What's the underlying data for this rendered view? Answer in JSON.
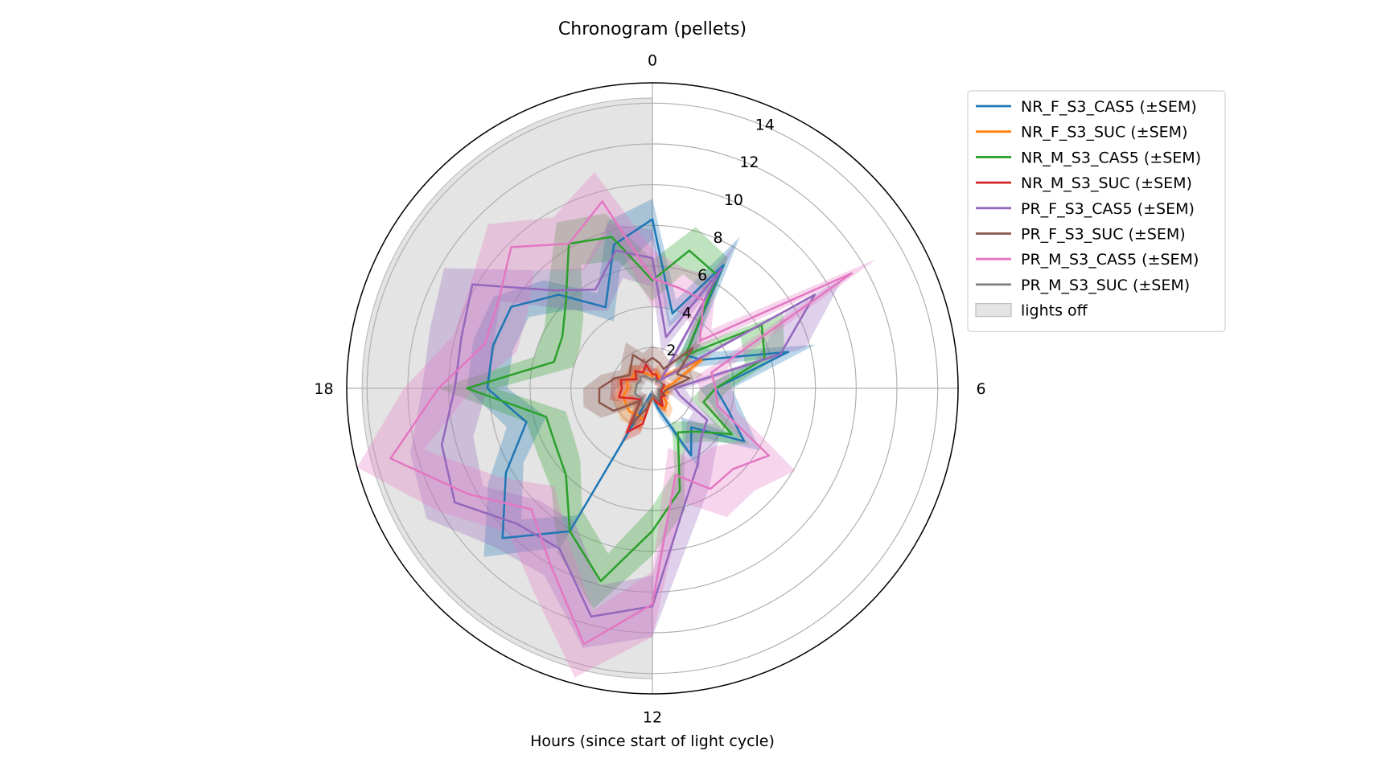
{
  "chart_data": {
    "type": "polar-line",
    "title": "Chronogram (pellets)",
    "xlabel": "Hours (since start of light cycle)",
    "angle_tick_labels": [
      "0",
      "6",
      "12",
      "18"
    ],
    "radial_tick_labels": [
      "2",
      "4",
      "6",
      "8",
      "10",
      "12",
      "14"
    ],
    "rlim": [
      0,
      15
    ],
    "hours": [
      0,
      1,
      2,
      3,
      4,
      5,
      6,
      7,
      8,
      9,
      10,
      11,
      12,
      13,
      14,
      15,
      16,
      17,
      18,
      19,
      20,
      21,
      22,
      23
    ],
    "lights_off": {
      "label": "lights off",
      "start_hour": 12,
      "end_hour": 24,
      "color": "#e4e4e4"
    },
    "grid": true,
    "legend_position": "upper-right, outside",
    "series": [
      {
        "name": "NR_F_S3_CAS5 (±SEM)",
        "color": "#1f77b4",
        "values": [
          8.3,
          3.8,
          7.0,
          2.3,
          2.8,
          6.9,
          3.1,
          3.8,
          5.2,
          2.7,
          3.8,
          1.0,
          0.4,
          0.3,
          8.1,
          10.4,
          8.3,
          6.4,
          8.1,
          8.1,
          8.0,
          6.5,
          4.6,
          7.3
        ],
        "sem": [
          1.0,
          0.7,
          1.6,
          0.8,
          0.8,
          1.4,
          0.8,
          0.8,
          0.9,
          0.7,
          0.8,
          0.5,
          0.3,
          0.3,
          0.9,
          1.3,
          1.0,
          1.0,
          1.0,
          1.0,
          1.0,
          1.0,
          0.8,
          1.2
        ],
        "_comment": "cells: NR_F_S3_CAS5 (±SEM)"
      },
      {
        "name": "NR_F_S3_SUC (±SEM)",
        "color": "#ff7f0e",
        "values": [
          0.6,
          0.8,
          0.6,
          0.9,
          2.8,
          1.1,
          0.6,
          0.8,
          0.5,
          1.0,
          1.2,
          0.7,
          0.4,
          1.6,
          1.5,
          1.6,
          1.5,
          1.5,
          1.2,
          1.3,
          1.1,
          1.2,
          0.9,
          0.7
        ],
        "sem": [
          0.3,
          0.4,
          0.3,
          0.4,
          0.6,
          0.4,
          0.3,
          0.3,
          0.3,
          0.4,
          0.5,
          0.3,
          0.2,
          0.6,
          0.6,
          0.6,
          0.5,
          0.5,
          0.5,
          0.5,
          0.4,
          0.4,
          0.4,
          0.3
        ]
      },
      {
        "name": "NR_M_S3_CAS5 (±SEM)",
        "color": "#2ca02c",
        "values": [
          5.3,
          7.0,
          6.4,
          2.3,
          6.2,
          5.7,
          3.1,
          2.6,
          4.5,
          3.0,
          2.5,
          5.2,
          7.0,
          9.8,
          8.1,
          6.0,
          5.5,
          5.4,
          9.1,
          5.0,
          5.1,
          6.0,
          8.2,
          7.7
        ],
        "sem": [
          1.0,
          1.2,
          1.0,
          0.7,
          1.2,
          1.0,
          0.7,
          0.6,
          1.0,
          0.7,
          0.6,
          1.0,
          1.2,
          1.4,
          1.2,
          1.0,
          1.0,
          1.0,
          1.4,
          1.0,
          1.0,
          1.2,
          1.2,
          1.2
        ]
      },
      {
        "name": "NR_M_S3_SUC (±SEM)",
        "color": "#d62728",
        "values": [
          0.7,
          0.7,
          0.5,
          0.5,
          0.5,
          0.6,
          0.5,
          0.4,
          0.7,
          0.6,
          1.0,
          0.7,
          0.3,
          1.8,
          2.5,
          0.8,
          1.0,
          1.7,
          1.5,
          1.6,
          0.9,
          1.2,
          0.9,
          1.2
        ],
        "sem": [
          0.3,
          0.3,
          0.3,
          0.3,
          0.3,
          0.3,
          0.3,
          0.2,
          0.3,
          0.3,
          0.4,
          0.3,
          0.2,
          0.5,
          0.6,
          0.4,
          0.4,
          0.5,
          0.5,
          0.5,
          0.4,
          0.4,
          0.4,
          0.4
        ]
      },
      {
        "name": "PR_F_S3_CAS5 (±SEM)",
        "color": "#9467bd",
        "values": [
          6.4,
          2.6,
          6.8,
          0.6,
          9.2,
          6.5,
          1.1,
          1.4,
          3.1,
          3.4,
          4.4,
          6.0,
          10.7,
          11.6,
          9.1,
          9.4,
          11.2,
          10.7,
          9.7,
          9.7,
          10.2,
          6.8,
          5.6,
          7.0
        ],
        "sem": [
          1.4,
          0.8,
          1.5,
          0.4,
          1.6,
          1.3,
          0.5,
          0.6,
          0.8,
          1.0,
          1.2,
          1.4,
          1.5,
          1.6,
          1.5,
          1.6,
          1.6,
          1.6,
          1.6,
          1.6,
          1.6,
          1.4,
          1.2,
          1.4
        ]
      },
      {
        "name": "PR_F_S3_SUC (±SEM)",
        "color": "#8c564b",
        "values": [
          1.5,
          1.3,
          1.1,
          2.8,
          1.4,
          1.9,
          0.8,
          0.6,
          0.6,
          0.4,
          0.8,
          0.4,
          0.3,
          1.0,
          2.0,
          0.9,
          2.2,
          2.7,
          2.6,
          1.9,
          1.3,
          1.5,
          1.9,
          1.3
        ],
        "sem": [
          0.6,
          0.6,
          0.5,
          0.8,
          0.6,
          0.7,
          0.4,
          0.3,
          0.3,
          0.3,
          0.4,
          0.3,
          0.2,
          0.5,
          0.7,
          0.4,
          0.7,
          0.8,
          0.8,
          0.7,
          0.5,
          0.6,
          0.7,
          0.5
        ]
      },
      {
        "name": "PR_M_S3_CAS5 (±SEM)",
        "color": "#e377c2",
        "values": [
          5.4,
          5.1,
          5.0,
          3.3,
          11.3,
          3.0,
          3.1,
          3.3,
          6.6,
          5.6,
          5.7,
          4.4,
          10.6,
          13.0,
          10.0,
          8.4,
          10.4,
          13.3,
          10.5,
          8.5,
          8.7,
          9.8,
          8.2,
          9.5
        ],
        "sem": [
          1.4,
          1.0,
          1.3,
          0.8,
          1.4,
          0.8,
          0.8,
          1.0,
          1.5,
          1.5,
          1.6,
          1.4,
          1.6,
          1.7,
          1.6,
          1.6,
          1.7,
          1.7,
          1.7,
          1.6,
          1.6,
          1.6,
          1.5,
          1.5
        ]
      },
      {
        "name": "PR_M_S3_SUC (±SEM)",
        "color": "#7f7f7f",
        "values": [
          0.4,
          0.5,
          0.4,
          0.5,
          0.5,
          0.5,
          0.4,
          0.3,
          0.4,
          0.4,
          0.6,
          0.5,
          0.3,
          0.6,
          1.0,
          0.7,
          0.8,
          0.9,
          0.8,
          0.8,
          0.7,
          0.8,
          0.7,
          0.5
        ],
        "sem": [
          0.2,
          0.2,
          0.2,
          0.2,
          0.2,
          0.2,
          0.2,
          0.2,
          0.2,
          0.2,
          0.3,
          0.2,
          0.2,
          0.3,
          0.4,
          0.3,
          0.3,
          0.3,
          0.3,
          0.3,
          0.3,
          0.3,
          0.3,
          0.2
        ]
      }
    ]
  }
}
